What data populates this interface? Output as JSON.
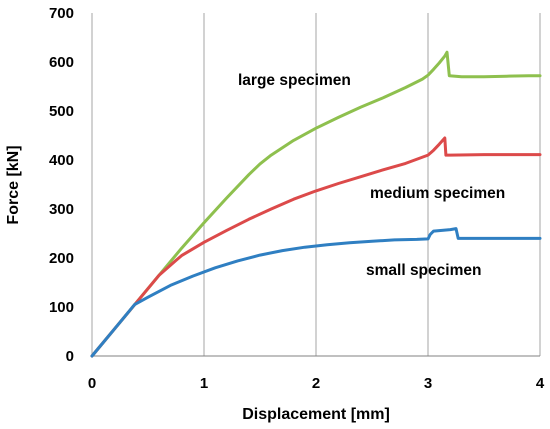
{
  "chart_data": {
    "type": "line",
    "title": "",
    "xlabel": "Displacement [mm]",
    "ylabel": "Force [kN]",
    "xlim": [
      0,
      4
    ],
    "ylim": [
      0,
      700
    ],
    "x_ticks": [
      "0",
      "1",
      "2",
      "3",
      "4"
    ],
    "y_ticks": [
      "0",
      "100",
      "200",
      "300",
      "400",
      "500",
      "600",
      "700"
    ],
    "grid": "vertical",
    "colors": {
      "large": "#8ec04e",
      "medium": "#dc4a4a",
      "small": "#2f7fc2",
      "grid": "#a6a6a6",
      "axis": "#808080"
    },
    "series": [
      {
        "name": "large specimen",
        "x": [
          0,
          0.2,
          0.4,
          0.6,
          0.8,
          1.0,
          1.2,
          1.4,
          1.5,
          1.6,
          1.8,
          2.0,
          2.2,
          2.4,
          2.6,
          2.8,
          2.95,
          3.0,
          3.05,
          3.1,
          3.15,
          3.17,
          3.19,
          3.3,
          3.5,
          3.7,
          3.9,
          4.0
        ],
        "y": [
          0,
          55,
          110,
          165,
          220,
          272,
          322,
          370,
          392,
          410,
          440,
          465,
          487,
          508,
          527,
          548,
          565,
          573,
          585,
          598,
          612,
          620,
          572,
          570,
          570,
          571,
          572,
          572
        ]
      },
      {
        "name": "medium specimen",
        "x": [
          0,
          0.2,
          0.4,
          0.6,
          0.75,
          0.8,
          1.0,
          1.2,
          1.4,
          1.6,
          1.8,
          2.0,
          2.2,
          2.4,
          2.6,
          2.8,
          3.0,
          3.05,
          3.1,
          3.15,
          3.16,
          3.2,
          3.5,
          4.0
        ],
        "y": [
          0,
          55,
          110,
          165,
          195,
          205,
          232,
          256,
          279,
          300,
          320,
          337,
          352,
          366,
          380,
          393,
          410,
          420,
          432,
          445,
          410,
          410,
          411,
          411
        ]
      },
      {
        "name": "small specimen",
        "x": [
          0,
          0.2,
          0.38,
          0.5,
          0.7,
          0.9,
          1.1,
          1.3,
          1.5,
          1.7,
          1.9,
          2.1,
          2.3,
          2.5,
          2.7,
          2.9,
          3.0,
          3.02,
          3.05,
          3.2,
          3.25,
          3.27,
          3.35,
          3.6,
          4.0
        ],
        "y": [
          0,
          55,
          105,
          120,
          144,
          163,
          180,
          194,
          206,
          215,
          222,
          227,
          231,
          234,
          237,
          238,
          239,
          248,
          255,
          258,
          260,
          240,
          240,
          240,
          240
        ]
      }
    ]
  }
}
